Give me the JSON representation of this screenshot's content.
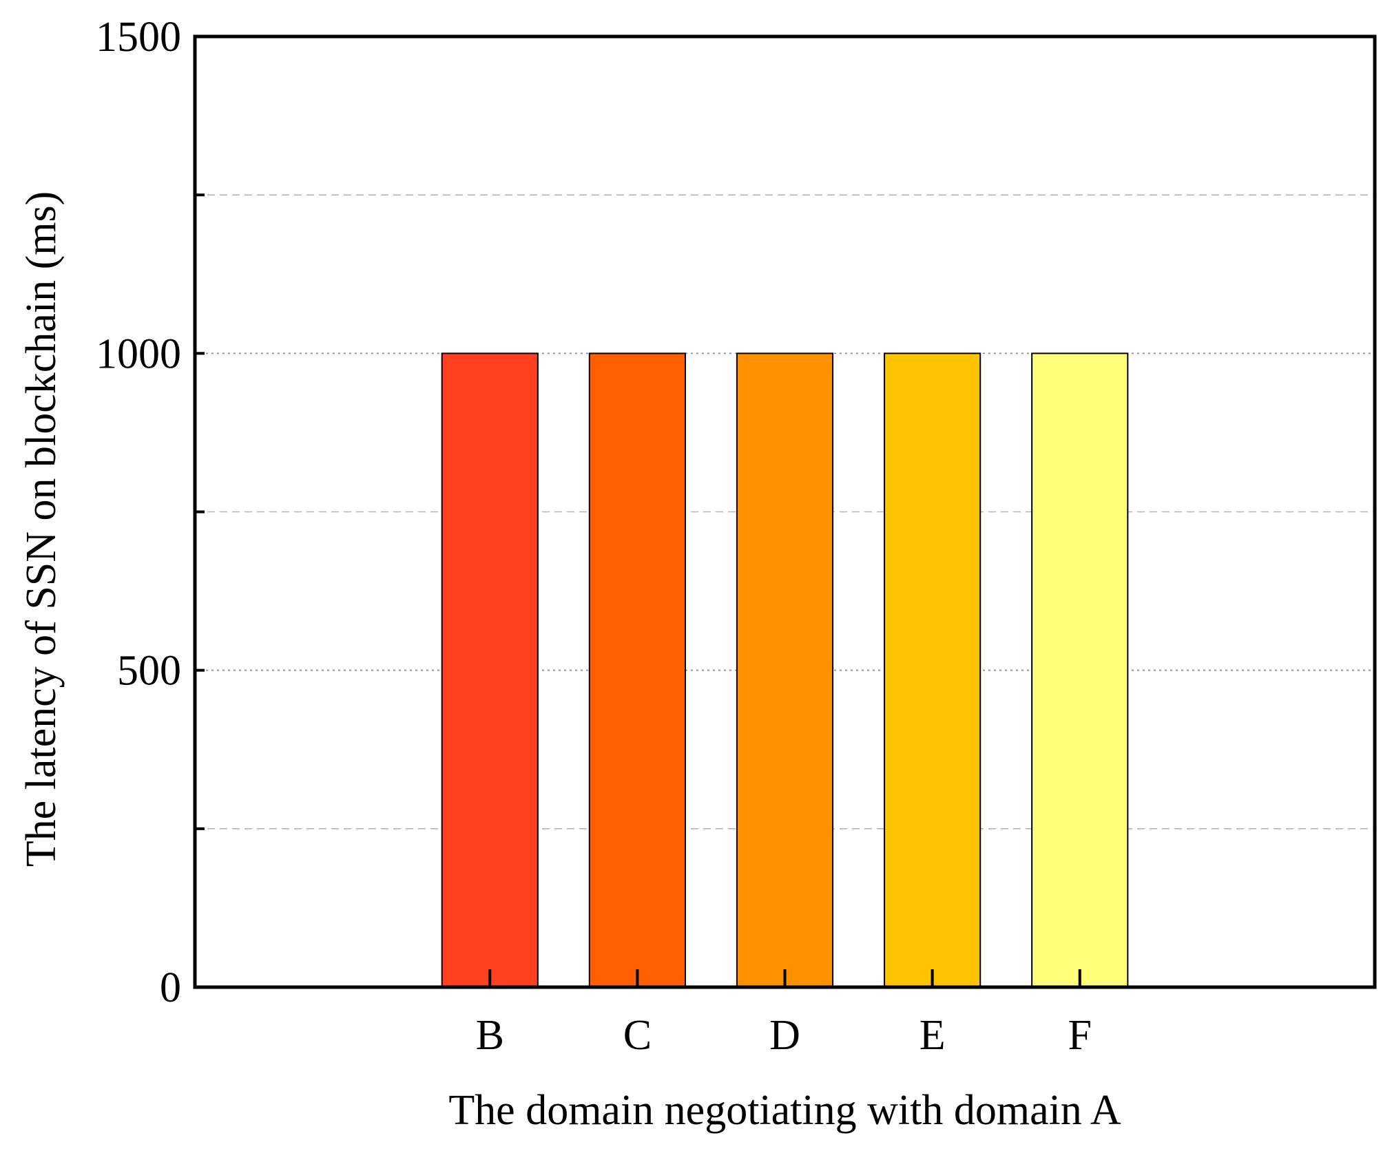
{
  "chart_data": {
    "type": "bar",
    "categories": [
      "B",
      "C",
      "D",
      "E",
      "F"
    ],
    "values": [
      1000,
      1000,
      1000,
      1000,
      1000
    ],
    "colors": [
      "#ff4020",
      "#ff5f00",
      "#ff9000",
      "#ffc400",
      "#ffff7a"
    ],
    "title": "",
    "xlabel": "The domain negotiating with domain A",
    "ylabel": "The latency of SSN on blockchain (ms)",
    "ylim": [
      0,
      1500
    ],
    "yticks": [
      0,
      500,
      1000,
      1500
    ],
    "yticks_minor": [
      250,
      750,
      1250
    ],
    "grid": true,
    "legend": "none"
  }
}
